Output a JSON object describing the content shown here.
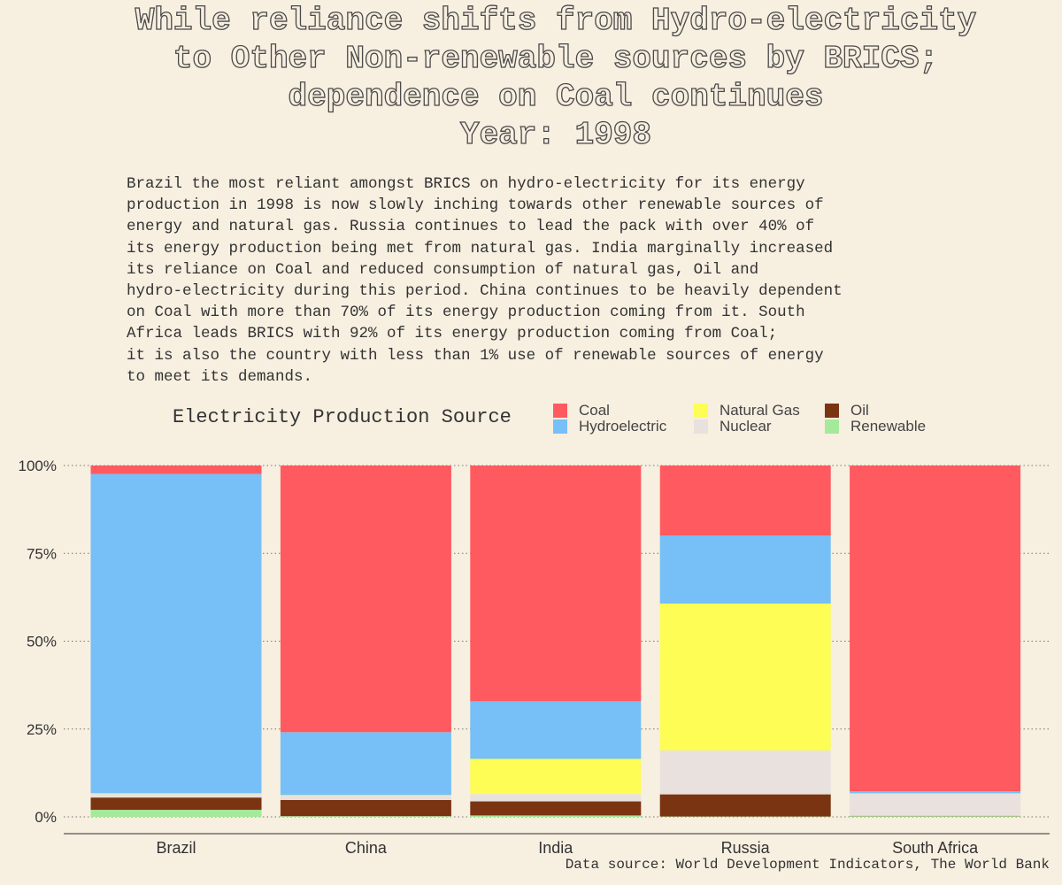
{
  "title_lines": [
    "While reliance shifts from Hydro-electricity",
    "to Other Non-renewable sources by BRICS;",
    "dependence on Coal continues",
    "Year: 1998"
  ],
  "subtitle": "Brazil the most reliant amongst BRICS on hydro-electricity for its energy\nproduction in 1998 is now slowly inching towards other renewable sources of\nenergy and natural gas. Russia continues to lead the pack with over 40% of\nits energy production being met from natural gas. India marginally increased\nits reliance on Coal and reduced consumption of natural gas, Oil and\nhydro-electricity during this period. China continues to be heavily dependent\non Coal with more than 70% of its energy production coming from it. South\nAfrica leads BRICS with 92% of its energy production coming from Coal;\nit is also the country with less than 1% use of renewable sources of energy\nto meet its demands.",
  "legend": {
    "title": "Electricity Production Source",
    "items": [
      {
        "label": "Coal",
        "color": "#ff5a60"
      },
      {
        "label": "Hydroelectric",
        "color": "#77bff7"
      },
      {
        "label": "Natural Gas",
        "color": "#fdfd55"
      },
      {
        "label": "Nuclear",
        "color": "#e9e1de"
      },
      {
        "label": "Oil",
        "color": "#7a3412"
      },
      {
        "label": "Renewable",
        "color": "#a4ea9a"
      }
    ]
  },
  "caption": "Data source: World Development Indicators, The World Bank",
  "chart_data": {
    "type": "bar",
    "stacked": true,
    "categories": [
      "Brazil",
      "China",
      "India",
      "Russia",
      "South Africa"
    ],
    "series": [
      {
        "name": "Renewable",
        "color": "#a4ea9a",
        "values": [
          2.0,
          0.2,
          0.4,
          0.1,
          0.2
        ]
      },
      {
        "name": "Oil",
        "color": "#7a3412",
        "values": [
          3.5,
          4.6,
          4.0,
          6.3,
          0.1
        ]
      },
      {
        "name": "Nuclear",
        "color": "#e9e1de",
        "values": [
          1.0,
          1.2,
          2.1,
          12.5,
          6.4
        ]
      },
      {
        "name": "Natural Gas",
        "color": "#fdfd55",
        "values": [
          0.2,
          0.2,
          10.0,
          41.8,
          0.0
        ]
      },
      {
        "name": "Hydroelectric",
        "color": "#77bff7",
        "values": [
          90.9,
          17.9,
          16.4,
          19.4,
          0.6
        ]
      },
      {
        "name": "Coal",
        "color": "#ff5a60",
        "values": [
          2.4,
          75.9,
          67.1,
          19.9,
          92.7
        ]
      }
    ],
    "yticks": [
      "0%",
      "25%",
      "50%",
      "75%",
      "100%"
    ],
    "ylim": [
      0,
      100
    ],
    "grid": "horizontal dotted",
    "legend_position": "top"
  }
}
